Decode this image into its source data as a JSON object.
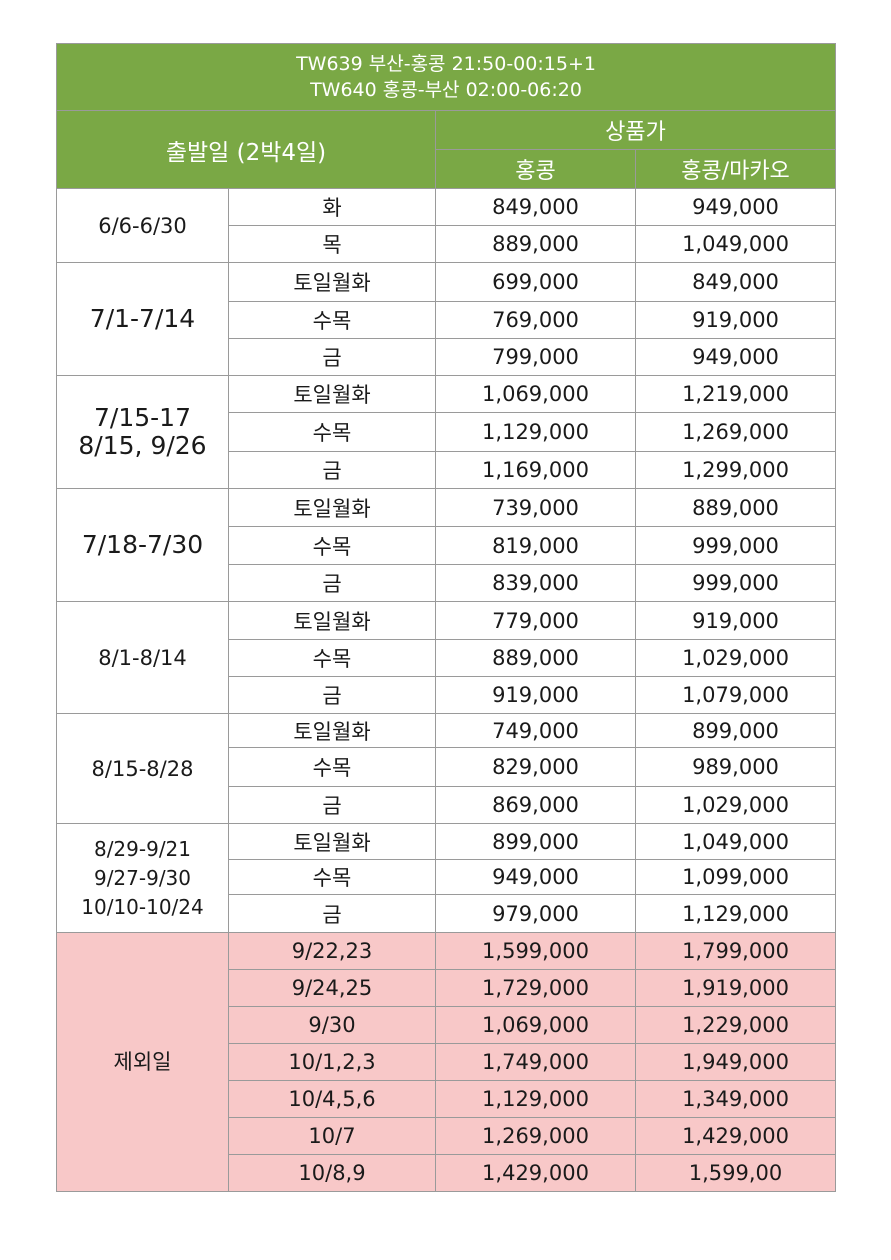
{
  "header": {
    "flight_line_1": "TW639 부산-홍콩 21:50-00:15+1",
    "flight_line_2": "TW640 홍콩-부산 02:00-06:20",
    "departure_label": "출발일 (2박4일)",
    "price_label": "상품가",
    "col_hk": "홍콩",
    "col_hk_macau": "홍콩/마카오"
  },
  "groups": [
    {
      "period": [
        "6/6-6/30"
      ],
      "rows": [
        {
          "day": "화",
          "hk": "849,000",
          "hkm": "949,000"
        },
        {
          "day": "목",
          "hk": "889,000",
          "hkm": "1,049,000"
        }
      ]
    },
    {
      "period": [
        "7/1-7/14"
      ],
      "rows": [
        {
          "day": "토일월화",
          "hk": "699,000",
          "hkm": "849,000"
        },
        {
          "day": "수목",
          "hk": "769,000",
          "hkm": "919,000"
        },
        {
          "day": "금",
          "hk": "799,000",
          "hkm": "949,000"
        }
      ]
    },
    {
      "period": [
        "7/15-17",
        "8/15, 9/26"
      ],
      "rows": [
        {
          "day": "토일월화",
          "hk": "1,069,000",
          "hkm": "1,219,000"
        },
        {
          "day": "수목",
          "hk": "1,129,000",
          "hkm": "1,269,000"
        },
        {
          "day": "금",
          "hk": "1,169,000",
          "hkm": "1,299,000"
        }
      ]
    },
    {
      "period": [
        "7/18-7/30"
      ],
      "rows": [
        {
          "day": "토일월화",
          "hk": "739,000",
          "hkm": "889,000"
        },
        {
          "day": "수목",
          "hk": "819,000",
          "hkm": "999,000"
        },
        {
          "day": "금",
          "hk": "839,000",
          "hkm": "999,000"
        }
      ]
    },
    {
      "period": [
        "8/1-8/14"
      ],
      "rows": [
        {
          "day": "토일월화",
          "hk": "779,000",
          "hkm": "919,000"
        },
        {
          "day": "수목",
          "hk": "889,000",
          "hkm": "1,029,000"
        },
        {
          "day": "금",
          "hk": "919,000",
          "hkm": "1,079,000"
        }
      ]
    },
    {
      "period": [
        "8/15-8/28"
      ],
      "rows": [
        {
          "day": "토일월화",
          "hk": "749,000",
          "hkm": "899,000"
        },
        {
          "day": "수목",
          "hk": "829,000",
          "hkm": "989,000"
        },
        {
          "day": "금",
          "hk": "869,000",
          "hkm": "1,029,000"
        }
      ]
    },
    {
      "period": [
        "8/29-9/21",
        "9/27-9/30",
        "10/10-10/24"
      ],
      "rows": [
        {
          "day": "토일월화",
          "hk": "899,000",
          "hkm": "1,049,000"
        },
        {
          "day": "수목",
          "hk": "949,000",
          "hkm": "1,099,000"
        },
        {
          "day": "금",
          "hk": "979,000",
          "hkm": "1,129,000"
        }
      ]
    }
  ],
  "excluded": {
    "label": "제외일",
    "rows": [
      {
        "day": "9/22,23",
        "hk": "1,599,000",
        "hkm": "1,799,000"
      },
      {
        "day": "9/24,25",
        "hk": "1,729,000",
        "hkm": "1,919,000"
      },
      {
        "day": "9/30",
        "hk": "1,069,000",
        "hkm": "1,229,000"
      },
      {
        "day": "10/1,2,3",
        "hk": "1,749,000",
        "hkm": "1,949,000"
      },
      {
        "day": "10/4,5,6",
        "hk": "1,129,000",
        "hkm": "1,349,000"
      },
      {
        "day": "10/7",
        "hk": "1,269,000",
        "hkm": "1,429,000"
      },
      {
        "day": "10/8,9",
        "hk": "1,429,000",
        "hkm": "1,599,00"
      }
    ]
  },
  "colors": {
    "header_green": "#7aa845",
    "excluded_pink": "#f8c8c8",
    "grid": "#9a9a9a"
  }
}
